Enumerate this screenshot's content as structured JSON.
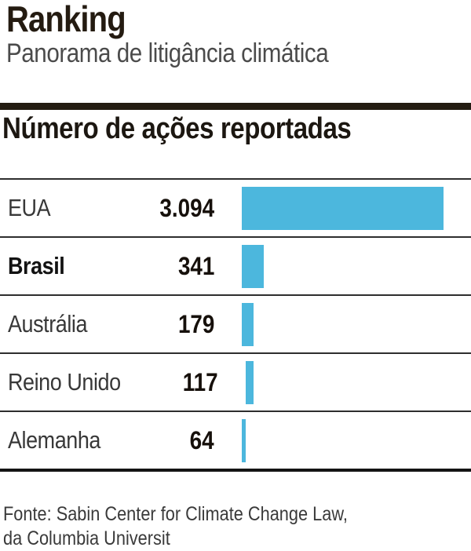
{
  "header": {
    "title": "Ranking",
    "subtitle": "Panorama de litigância climática"
  },
  "section": {
    "label": "Número de ações reportadas"
  },
  "rows": [
    {
      "label": "EUA",
      "value": "3.094"
    },
    {
      "label": "Brasil",
      "value": "341"
    },
    {
      "label": "Austrália",
      "value": "179"
    },
    {
      "label": "Reino Unido",
      "value": "117"
    },
    {
      "label": "Alemanha",
      "value": "64"
    }
  ],
  "footer": {
    "source_line1": "Fonte: Sabin Center for Climate Change Law,",
    "source_line2": "da Columbia Universit"
  },
  "colors": {
    "bar": "#4cb7dd",
    "thick_rule": "#241c12",
    "row_divider": "#2e2e2e",
    "bottom_border": "#141414"
  },
  "chart_data": {
    "type": "bar",
    "orientation": "horizontal",
    "title": "Ranking",
    "subtitle": "Panorama de litigância climática",
    "value_axis_label": "Número de ações reportadas",
    "categories": [
      "EUA",
      "Brasil",
      "Austrália",
      "Reino Unido",
      "Alemanha"
    ],
    "values": [
      3094,
      341,
      179,
      117,
      64
    ],
    "value_labels": [
      "3.094",
      "341",
      "179",
      "117",
      "64"
    ],
    "highlighted_category": "Brasil",
    "bar_color": "#4cb7dd",
    "xlim": [
      0,
      3094
    ],
    "grid": false,
    "legend": false,
    "source": "Fonte: Sabin Center for Climate Change Law, da Columbia Universit"
  }
}
